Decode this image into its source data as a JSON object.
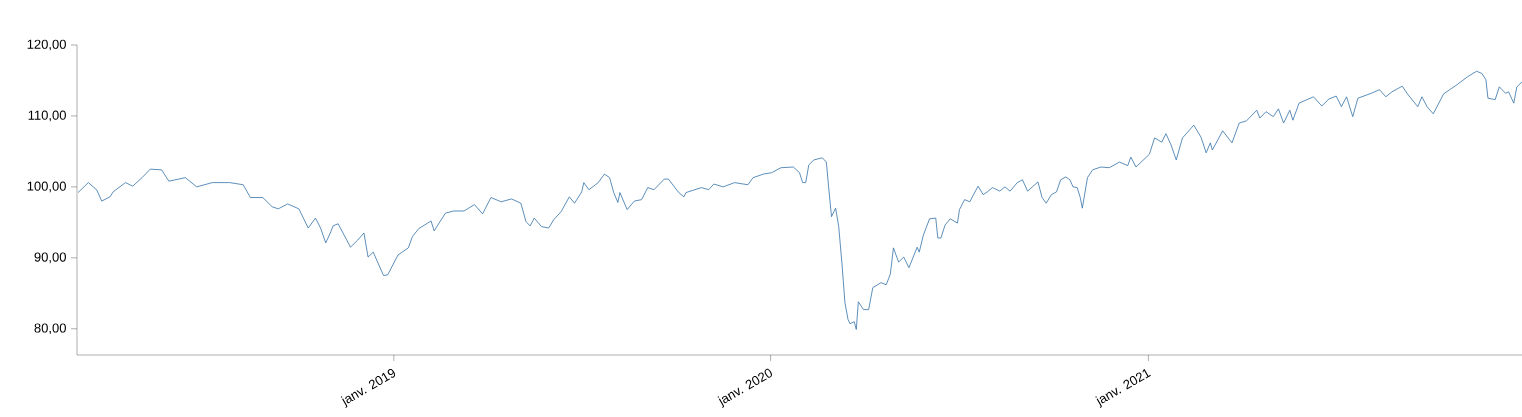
{
  "chart_data": {
    "type": "line",
    "color": "#3572a8",
    "xlim": [
      "2018-02-28",
      "2021-12-29"
    ],
    "ylim": [
      76.3,
      120
    ],
    "xticks": [
      {
        "value": "2019-01-01",
        "label": "janv. 2019"
      },
      {
        "value": "2020-01-01",
        "label": "janv. 2020"
      },
      {
        "value": "2021-01-01",
        "label": "janv. 2021"
      }
    ],
    "yticks": [
      {
        "value": 80,
        "label": "80,00"
      },
      {
        "value": 90,
        "label": "90,00"
      },
      {
        "value": 100,
        "label": "100,00"
      },
      {
        "value": 110,
        "label": "110,00"
      },
      {
        "value": 120,
        "label": "120,00"
      }
    ],
    "x": [
      "2018-03-01",
      "2018-03-11",
      "2018-03-19",
      "2018-03-24",
      "2018-04-01",
      "2018-04-04",
      "2018-04-16",
      "2018-04-23",
      "2018-05-02",
      "2018-05-10",
      "2018-05-21",
      "2018-05-28",
      "2018-06-13",
      "2018-06-24",
      "2018-07-09",
      "2018-07-26",
      "2018-08-08",
      "2018-08-15",
      "2018-08-27",
      "2018-09-05",
      "2018-09-11",
      "2018-09-20",
      "2018-10-01",
      "2018-10-10",
      "2018-10-17",
      "2018-10-22",
      "2018-10-27",
      "2018-11-01",
      "2018-11-03",
      "2018-11-08",
      "2018-11-20",
      "2018-11-27",
      "2018-12-03",
      "2018-12-07",
      "2018-12-12",
      "2018-12-22",
      "2018-12-26",
      "2019-01-05",
      "2019-01-15",
      "2019-01-19",
      "2019-01-25",
      "2019-02-06",
      "2019-02-09",
      "2019-02-20",
      "2019-02-28",
      "2019-03-10",
      "2019-03-20",
      "2019-03-28",
      "2019-04-05",
      "2019-04-15",
      "2019-04-25",
      "2019-05-04",
      "2019-05-09",
      "2019-05-13",
      "2019-05-17",
      "2019-05-24",
      "2019-05-31",
      "2019-06-05",
      "2019-06-12",
      "2019-06-20",
      "2019-06-25",
      "2019-07-02",
      "2019-07-04",
      "2019-07-09",
      "2019-07-18",
      "2019-07-24",
      "2019-07-29",
      "2019-08-02",
      "2019-08-06",
      "2019-08-08",
      "2019-08-15",
      "2019-08-22",
      "2019-08-29",
      "2019-09-04",
      "2019-09-10",
      "2019-09-20",
      "2019-09-24",
      "2019-10-04",
      "2019-10-09",
      "2019-10-11",
      "2019-10-26",
      "2019-11-02",
      "2019-11-07",
      "2019-11-16",
      "2019-11-27",
      "2019-12-10",
      "2019-12-15",
      "2019-12-25",
      "2020-01-02",
      "2020-01-11",
      "2020-01-23",
      "2020-01-29",
      "2020-02-01",
      "2020-02-04",
      "2020-02-07",
      "2020-02-12",
      "2020-02-20",
      "2020-02-24",
      "2020-02-26",
      "2020-02-29",
      "2020-03-04",
      "2020-03-07",
      "2020-03-10",
      "2020-03-13",
      "2020-03-16",
      "2020-03-18",
      "2020-03-22",
      "2020-03-24",
      "2020-03-26",
      "2020-03-31",
      "2020-04-05",
      "2020-04-09",
      "2020-04-17",
      "2020-04-22",
      "2020-04-26",
      "2020-04-29",
      "2020-05-04",
      "2020-05-09",
      "2020-05-14",
      "2020-05-22",
      "2020-05-24",
      "2020-05-28",
      "2020-06-03",
      "2020-06-09",
      "2020-06-11",
      "2020-06-14",
      "2020-06-18",
      "2020-06-23",
      "2020-06-30",
      "2020-07-02",
      "2020-07-07",
      "2020-07-12",
      "2020-07-20",
      "2020-07-25",
      "2020-07-29",
      "2020-08-03",
      "2020-08-10",
      "2020-08-15",
      "2020-08-20",
      "2020-08-27",
      "2020-09-01",
      "2020-09-06",
      "2020-09-16",
      "2020-09-20",
      "2020-09-24",
      "2020-09-29",
      "2020-10-04",
      "2020-10-08",
      "2020-10-13",
      "2020-10-17",
      "2020-10-20",
      "2020-10-24",
      "2020-10-27",
      "2020-10-29",
      "2020-11-03",
      "2020-11-08",
      "2020-11-16",
      "2020-11-24",
      "2020-12-04",
      "2020-12-12",
      "2020-12-15",
      "2020-12-20",
      "2021-01-02",
      "2021-01-07",
      "2021-01-14",
      "2021-01-18",
      "2021-01-23",
      "2021-01-28",
      "2021-02-03",
      "2021-02-14",
      "2021-02-21",
      "2021-02-26",
      "2021-03-02",
      "2021-03-04",
      "2021-03-14",
      "2021-03-23",
      "2021-03-30",
      "2021-04-06",
      "2021-04-16",
      "2021-04-19",
      "2021-04-25",
      "2021-05-02",
      "2021-05-07",
      "2021-05-12",
      "2021-05-18",
      "2021-05-21",
      "2021-05-27",
      "2021-06-10",
      "2021-06-18",
      "2021-06-25",
      "2021-07-02",
      "2021-07-07",
      "2021-07-12",
      "2021-07-18",
      "2021-07-23",
      "2021-08-05",
      "2021-08-13",
      "2021-08-19",
      "2021-08-25",
      "2021-09-04",
      "2021-09-09",
      "2021-09-19",
      "2021-09-23",
      "2021-09-28",
      "2021-10-04",
      "2021-10-08",
      "2021-10-14",
      "2021-10-22",
      "2021-10-27",
      "2021-11-06",
      "2021-11-15",
      "2021-11-20",
      "2021-11-24",
      "2021-11-26",
      "2021-12-03",
      "2021-12-07",
      "2021-12-13",
      "2021-12-16",
      "2021-12-21",
      "2021-12-24",
      "2021-12-29"
    ],
    "values": [
      99.2,
      100.6,
      99.6,
      98.0,
      98.6,
      99.3,
      100.6,
      100.1,
      101.3,
      102.5,
      102.4,
      100.8,
      101.3,
      100.0,
      100.6,
      100.6,
      100.3,
      98.5,
      98.5,
      97.2,
      96.9,
      97.6,
      96.9,
      94.2,
      95.6,
      94.2,
      92.1,
      93.7,
      94.5,
      94.8,
      91.5,
      92.5,
      93.5,
      90.1,
      90.8,
      87.5,
      87.6,
      90.4,
      91.4,
      93.0,
      94.1,
      95.2,
      93.8,
      96.3,
      96.6,
      96.6,
      97.5,
      96.2,
      98.5,
      97.9,
      98.3,
      97.7,
      95.1,
      94.5,
      95.6,
      94.4,
      94.2,
      95.4,
      96.5,
      98.6,
      97.7,
      99.3,
      100.6,
      99.6,
      100.6,
      101.8,
      101.3,
      99.2,
      97.8,
      99.2,
      96.8,
      98.0,
      98.2,
      99.9,
      99.6,
      101.1,
      101.1,
      99.2,
      98.6,
      99.2,
      99.9,
      99.6,
      100.4,
      100.0,
      100.6,
      100.3,
      101.3,
      101.8,
      102.0,
      102.7,
      102.8,
      102.0,
      100.6,
      100.6,
      103.1,
      103.8,
      104.1,
      103.5,
      100.3,
      95.8,
      97.0,
      94.4,
      89.4,
      83.7,
      81.3,
      80.7,
      81.0,
      79.9,
      83.8,
      82.7,
      82.7,
      85.8,
      86.5,
      86.2,
      87.7,
      91.4,
      89.4,
      90.1,
      88.6,
      91.5,
      90.8,
      93.2,
      95.5,
      95.6,
      92.8,
      92.8,
      94.6,
      95.5,
      94.9,
      96.8,
      98.2,
      97.9,
      100.1,
      98.9,
      99.3,
      99.9,
      99.4,
      100.0,
      99.4,
      100.6,
      101.0,
      99.4,
      100.7,
      98.5,
      97.7,
      98.9,
      99.3,
      101.0,
      101.4,
      101.0,
      100.0,
      99.9,
      98.5,
      97.0,
      101.3,
      102.4,
      102.8,
      102.7,
      103.5,
      103.0,
      104.2,
      102.8,
      104.6,
      106.9,
      106.3,
      107.5,
      105.9,
      103.8,
      106.9,
      108.7,
      107.0,
      104.8,
      106.2,
      105.2,
      107.9,
      106.2,
      109.0,
      109.3,
      110.8,
      109.7,
      110.6,
      109.9,
      111.0,
      109.0,
      110.8,
      109.4,
      111.8,
      112.7,
      111.4,
      112.4,
      112.8,
      111.3,
      112.7,
      109.9,
      112.5,
      113.2,
      113.7,
      112.7,
      113.4,
      114.2,
      113.1,
      111.3,
      112.7,
      111.3,
      110.3,
      111.4,
      113.1,
      113.9,
      114.4,
      115.5,
      116.3,
      116.0,
      115.1,
      112.5,
      112.3,
      114.1,
      113.2,
      113.4,
      111.8,
      114.1,
      114.8
    ]
  }
}
